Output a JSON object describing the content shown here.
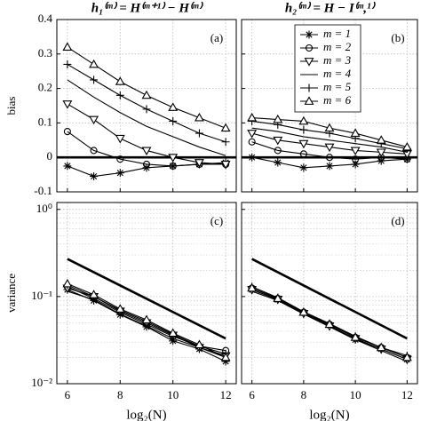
{
  "chart_data": [
    {
      "type": "line",
      "title": "h₁⁽ᵐ⁾ = H⁽ᵐ⁺¹⁾ − H⁽ᵐ⁾",
      "panel_label": "(a)",
      "y_label": "bias",
      "x": [
        6,
        7,
        8,
        9,
        10,
        11,
        12
      ],
      "xlim": [
        5.6,
        12.4
      ],
      "xticks": [
        6,
        8,
        10,
        12
      ],
      "show_x_labels": false,
      "ylim": [
        -0.1,
        0.4
      ],
      "yticks": [
        -0.1,
        0,
        0.1,
        0.2,
        0.3,
        0.4
      ],
      "show_y_labels": true,
      "grid": true,
      "hline": 0,
      "series": [
        {
          "color": "#000000",
          "marker": "star",
          "values": [
            -0.025,
            -0.055,
            -0.045,
            -0.03,
            -0.025,
            -0.02,
            -0.015
          ]
        },
        {
          "color": "#000000",
          "marker": "circle",
          "values": [
            0.075,
            0.02,
            -0.005,
            -0.02,
            -0.025,
            -0.02,
            -0.02
          ]
        },
        {
          "color": "#000000",
          "marker": "tri-down",
          "values": [
            0.155,
            0.11,
            0.055,
            0.02,
            0.0,
            -0.015,
            -0.02
          ]
        },
        {
          "color": "#000000",
          "marker": "none",
          "values": [
            0.225,
            0.175,
            0.13,
            0.09,
            0.06,
            0.03,
            0.005
          ]
        },
        {
          "color": "#000000",
          "marker": "plus",
          "values": [
            0.27,
            0.225,
            0.18,
            0.14,
            0.105,
            0.07,
            0.045
          ]
        },
        {
          "color": "#000000",
          "marker": "tri-up",
          "values": [
            0.32,
            0.27,
            0.22,
            0.18,
            0.145,
            0.115,
            0.085
          ]
        }
      ]
    },
    {
      "type": "line",
      "title": "h₂⁽ᵐ⁾ = H − I⁽ᵐ,¹⁾",
      "panel_label": "(b)",
      "legend": "upper right",
      "x": [
        6,
        7,
        8,
        9,
        10,
        11,
        12
      ],
      "xlim": [
        5.6,
        12.4
      ],
      "xticks": [
        6,
        8,
        10,
        12
      ],
      "show_x_labels": false,
      "ylim": [
        -0.1,
        0.4
      ],
      "yticks": [
        -0.1,
        0,
        0.1,
        0.2,
        0.3,
        0.4
      ],
      "show_y_labels": false,
      "grid": true,
      "hline": 0,
      "series": [
        {
          "name": "m = 1",
          "color": "#000000",
          "marker": "star",
          "values": [
            0.0,
            -0.015,
            -0.03,
            -0.025,
            -0.02,
            -0.01,
            -0.005
          ]
        },
        {
          "name": "m = 2",
          "color": "#000000",
          "marker": "circle",
          "values": [
            0.045,
            0.02,
            0.01,
            0.0,
            -0.005,
            0.0,
            -0.005
          ]
        },
        {
          "name": "m = 3",
          "color": "#000000",
          "marker": "tri-down",
          "values": [
            0.07,
            0.05,
            0.04,
            0.03,
            0.02,
            0.015,
            0.01
          ]
        },
        {
          "name": "m = 4",
          "color": "#000000",
          "marker": "none",
          "values": [
            0.085,
            0.075,
            0.06,
            0.05,
            0.04,
            0.03,
            0.015
          ]
        },
        {
          "name": "m = 5",
          "color": "#000000",
          "marker": "plus",
          "values": [
            0.105,
            0.095,
            0.08,
            0.07,
            0.055,
            0.04,
            0.025
          ]
        },
        {
          "name": "m = 6",
          "color": "#000000",
          "marker": "tri-up",
          "values": [
            0.115,
            0.11,
            0.105,
            0.085,
            0.07,
            0.05,
            0.03
          ]
        }
      ]
    },
    {
      "type": "line",
      "panel_label": "(c)",
      "y_label": "variance",
      "x_label": "log₂(N)",
      "x": [
        6,
        7,
        8,
        9,
        10,
        11,
        12
      ],
      "xlim": [
        5.6,
        12.4
      ],
      "xticks": [
        6,
        8,
        10,
        12
      ],
      "show_x_labels": true,
      "ylim": [
        0.01,
        1.2
      ],
      "log_y": true,
      "yticks": [
        {
          "value": 0.01,
          "label": "10⁻²"
        },
        {
          "value": 0.1,
          "label": "10⁻¹"
        },
        {
          "value": 1,
          "label": "10⁰"
        }
      ],
      "show_y_labels": true,
      "grid": true,
      "minor_grid": true,
      "reference_line": {
        "x": [
          6,
          12
        ],
        "values": [
          0.27,
          0.033
        ]
      },
      "series": [
        {
          "color": "#000000",
          "marker": "star",
          "values": [
            0.12,
            0.09,
            0.062,
            0.045,
            0.031,
            0.025,
            0.018
          ]
        },
        {
          "color": "#000000",
          "marker": "circle",
          "values": [
            0.13,
            0.095,
            0.066,
            0.048,
            0.035,
            0.027,
            0.024
          ]
        },
        {
          "color": "#000000",
          "marker": "tri-down",
          "values": [
            0.125,
            0.1,
            0.068,
            0.05,
            0.036,
            0.026,
            0.021
          ]
        },
        {
          "color": "#000000",
          "marker": "none",
          "values": [
            0.115,
            0.092,
            0.063,
            0.046,
            0.033,
            0.026,
            0.02
          ]
        },
        {
          "color": "#000000",
          "marker": "plus",
          "values": [
            0.135,
            0.1,
            0.07,
            0.052,
            0.037,
            0.027,
            0.022
          ]
        },
        {
          "color": "#000000",
          "marker": "tri-up",
          "values": [
            0.14,
            0.105,
            0.072,
            0.054,
            0.038,
            0.028,
            0.02
          ]
        }
      ]
    },
    {
      "type": "line",
      "panel_label": "(d)",
      "x_label": "log₂(N)",
      "x": [
        6,
        7,
        8,
        9,
        10,
        11,
        12
      ],
      "xlim": [
        5.6,
        12.4
      ],
      "xticks": [
        6,
        8,
        10,
        12
      ],
      "show_x_labels": true,
      "ylim": [
        0.01,
        1.2
      ],
      "log_y": true,
      "yticks": [
        {
          "value": 0.01,
          "label": "10⁻²"
        },
        {
          "value": 0.1,
          "label": "10⁻¹"
        },
        {
          "value": 1,
          "label": "10⁰"
        }
      ],
      "show_y_labels": false,
      "grid": true,
      "minor_grid": true,
      "reference_line": {
        "x": [
          6,
          12
        ],
        "values": [
          0.27,
          0.033
        ]
      },
      "series": [
        {
          "color": "#000000",
          "marker": "star",
          "values": [
            0.12,
            0.092,
            0.065,
            0.047,
            0.032,
            0.025,
            0.019
          ]
        },
        {
          "color": "#000000",
          "marker": "circle",
          "values": [
            0.125,
            0.095,
            0.066,
            0.048,
            0.034,
            0.026,
            0.02
          ]
        },
        {
          "color": "#000000",
          "marker": "tri-down",
          "values": [
            0.12,
            0.093,
            0.064,
            0.046,
            0.033,
            0.025,
            0.019
          ]
        },
        {
          "color": "#000000",
          "marker": "none",
          "values": [
            0.115,
            0.09,
            0.063,
            0.045,
            0.032,
            0.024,
            0.018
          ]
        },
        {
          "color": "#000000",
          "marker": "plus",
          "values": [
            0.13,
            0.097,
            0.067,
            0.049,
            0.035,
            0.026,
            0.021
          ]
        },
        {
          "color": "#000000",
          "marker": "tri-up",
          "values": [
            0.125,
            0.095,
            0.066,
            0.048,
            0.034,
            0.026,
            0.02
          ]
        }
      ]
    }
  ]
}
